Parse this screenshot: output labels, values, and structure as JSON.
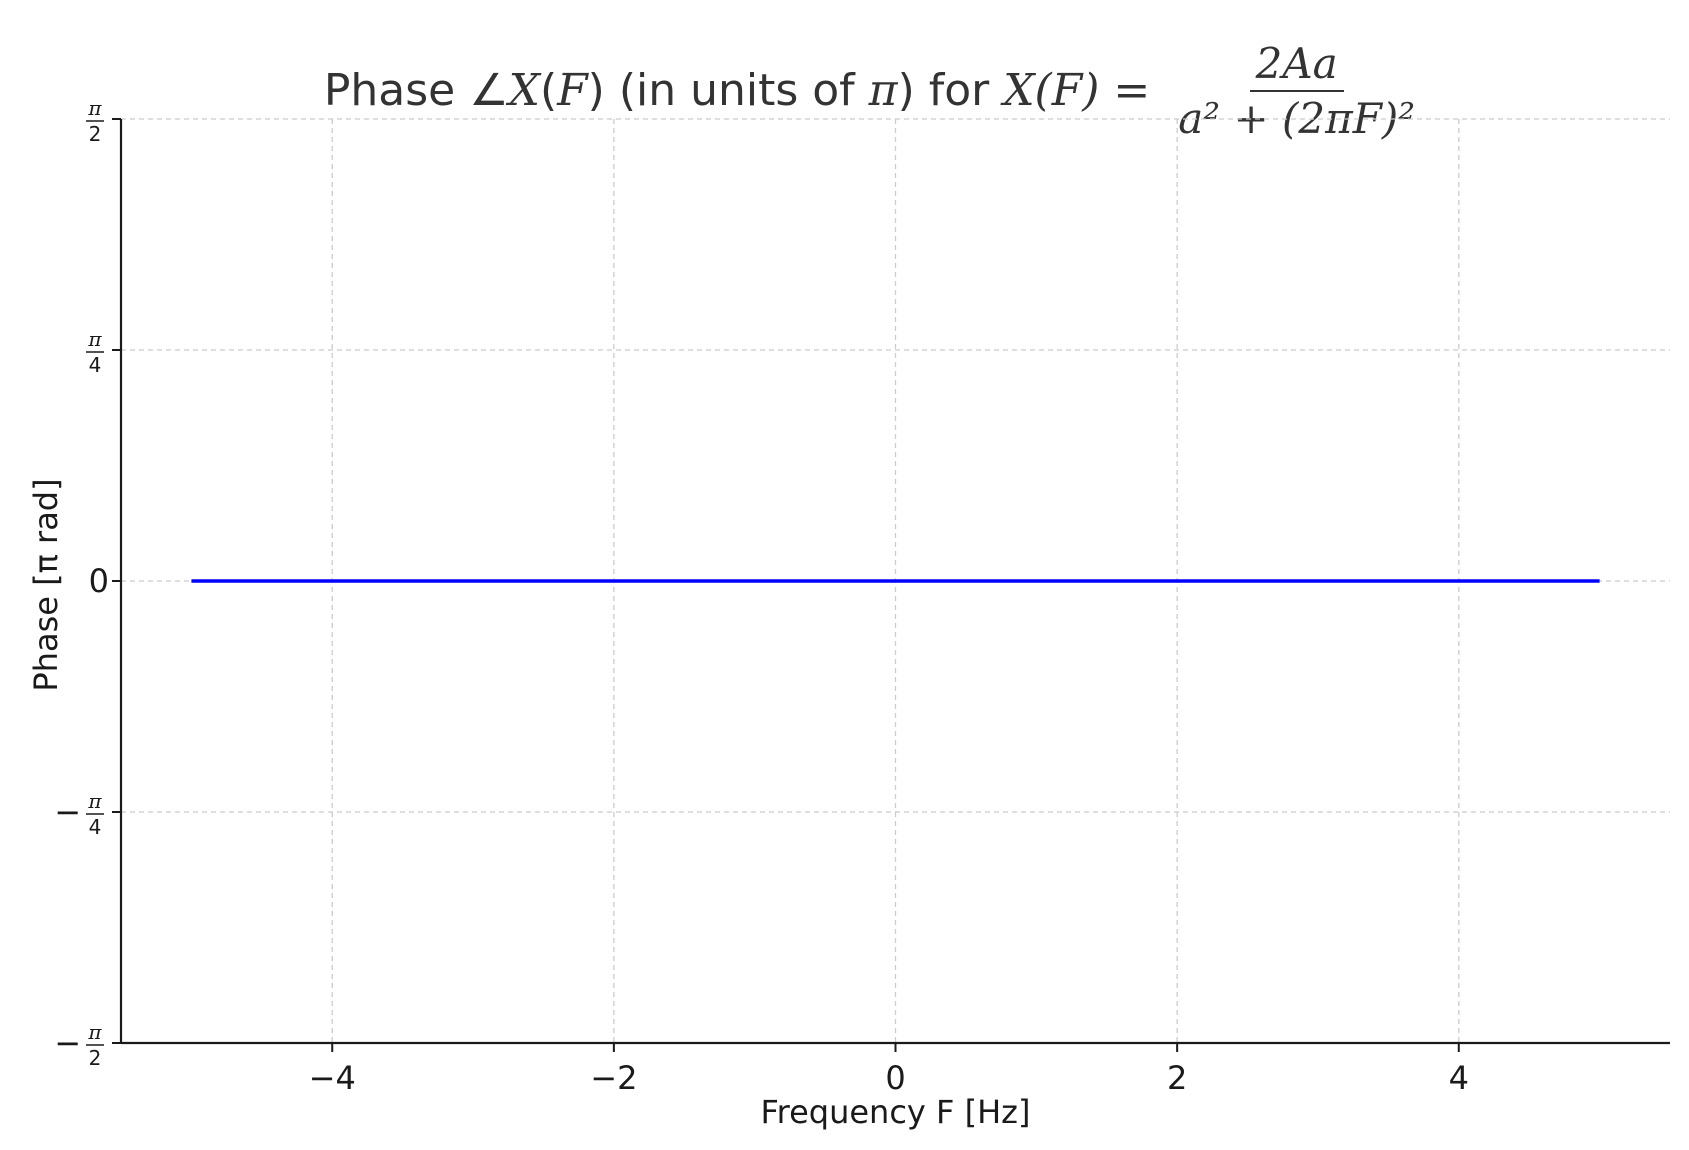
{
  "chart_data": {
    "type": "line",
    "title": {
      "prefix": "Phase ∠",
      "fn": "X",
      "paren1": "(",
      "var": "F",
      "paren2": ")",
      "middle": " (in units of ",
      "pi": "π",
      "suffix": ") for ",
      "fn2": "X",
      "eq": "(F) = ",
      "numerator": "2Aa",
      "denominator": "a² + (2πF)²"
    },
    "xlabel": "Frequency F [Hz]",
    "ylabel": "Phase [π rad]",
    "xlim": [
      -5.5,
      5.5
    ],
    "ylim": [
      -0.5,
      0.5
    ],
    "xticks": [
      -4,
      -2,
      0,
      2,
      4
    ],
    "xtick_labels": [
      "−4",
      "−2",
      "0",
      "2",
      "4"
    ],
    "yticks": [
      {
        "value": -0.5,
        "sign": "−",
        "num": "π",
        "den": "2"
      },
      {
        "value": -0.25,
        "sign": "−",
        "num": "π",
        "den": "4"
      },
      {
        "value": 0,
        "text": "0"
      },
      {
        "value": 0.25,
        "sign": "",
        "num": "π",
        "den": "4"
      },
      {
        "value": 0.5,
        "sign": "",
        "num": "π",
        "den": "2"
      }
    ],
    "grid": true,
    "series": [
      {
        "color": "#0000ff",
        "x": [
          -5,
          -4,
          -3,
          -2,
          -1,
          0,
          1,
          2,
          3,
          4,
          5
        ],
        "y": [
          0,
          0,
          0,
          0,
          0,
          0,
          0,
          0,
          0,
          0,
          0
        ]
      }
    ]
  }
}
